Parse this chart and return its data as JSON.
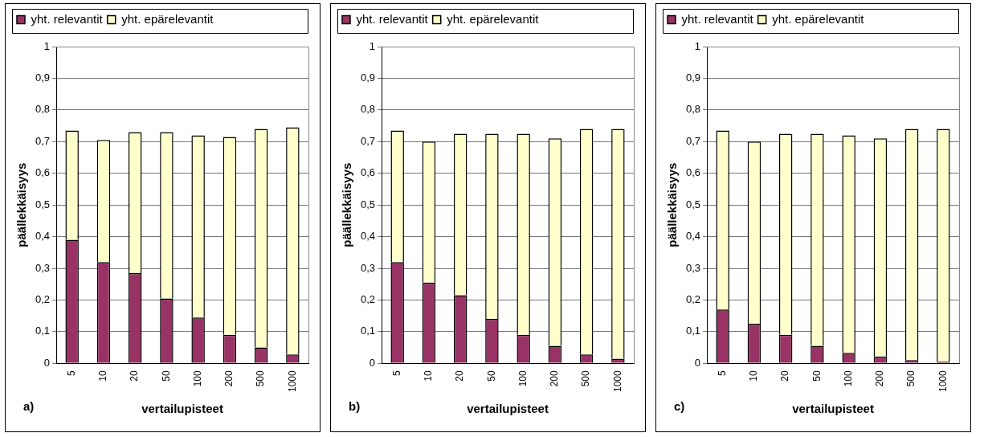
{
  "chart_data": [
    {
      "type": "bar",
      "stacked": true,
      "categories": [
        "5",
        "10",
        "20",
        "50",
        "100",
        "200",
        "500",
        "1000"
      ],
      "ylabel": "päällekkäisyys",
      "xlabel": "vertailupisteet",
      "annotations": [
        "a)"
      ],
      "legend": "top",
      "grid": "y",
      "ylim": [
        0,
        1
      ],
      "yticks": [
        {
          "value": 0,
          "label": "0"
        },
        {
          "value": 0.1,
          "label": "0,1"
        },
        {
          "value": 0.2,
          "label": "0,2"
        },
        {
          "value": 0.3,
          "label": "0,3"
        },
        {
          "value": 0.4,
          "label": "0,4"
        },
        {
          "value": 0.5,
          "label": "0,5"
        },
        {
          "value": 0.6,
          "label": "0,6"
        },
        {
          "value": 0.7,
          "label": "0,7"
        },
        {
          "value": 0.8,
          "label": "0,8"
        },
        {
          "value": 0.9,
          "label": "0,9"
        },
        {
          "value": 1,
          "label": "1"
        }
      ],
      "series": [
        {
          "name": "yht. relevantit",
          "color": "#993366",
          "values": [
            0.39,
            0.32,
            0.285,
            0.205,
            0.145,
            0.09,
            0.05,
            0.028
          ]
        },
        {
          "name": "yht. epärelevantit",
          "color": "#ffffcc",
          "values": [
            0.345,
            0.385,
            0.445,
            0.525,
            0.575,
            0.625,
            0.69,
            0.717
          ]
        }
      ]
    },
    {
      "type": "bar",
      "stacked": true,
      "categories": [
        "5",
        "10",
        "20",
        "50",
        "100",
        "200",
        "500",
        "1000"
      ],
      "ylabel": "päällekkäisyys",
      "xlabel": "vertailupisteet",
      "annotations": [
        "b)"
      ],
      "legend": "top",
      "grid": "y",
      "ylim": [
        0,
        1
      ],
      "yticks": [
        {
          "value": 0,
          "label": "0"
        },
        {
          "value": 0.1,
          "label": "0,1"
        },
        {
          "value": 0.2,
          "label": "0,2"
        },
        {
          "value": 0.3,
          "label": "0,3"
        },
        {
          "value": 0.4,
          "label": "0,4"
        },
        {
          "value": 0.5,
          "label": "0,5"
        },
        {
          "value": 0.6,
          "label": "0,6"
        },
        {
          "value": 0.7,
          "label": "0,7"
        },
        {
          "value": 0.8,
          "label": "0,8"
        },
        {
          "value": 0.9,
          "label": "0,9"
        },
        {
          "value": 1,
          "label": "1"
        }
      ],
      "series": [
        {
          "name": "yht. relevantit",
          "color": "#993366",
          "values": [
            0.32,
            0.255,
            0.215,
            0.14,
            0.09,
            0.055,
            0.028,
            0.015
          ]
        },
        {
          "name": "yht. epärelevantit",
          "color": "#ffffcc",
          "values": [
            0.415,
            0.445,
            0.51,
            0.585,
            0.635,
            0.655,
            0.712,
            0.725
          ]
        }
      ]
    },
    {
      "type": "bar",
      "stacked": true,
      "categories": [
        "5",
        "10",
        "20",
        "50",
        "100",
        "200",
        "500",
        "1000"
      ],
      "ylabel": "päällekkäisyys",
      "xlabel": "vertailupisteet",
      "annotations": [
        "c)"
      ],
      "legend": "top",
      "grid": "y",
      "ylim": [
        0,
        1
      ],
      "yticks": [
        {
          "value": 0,
          "label": "0"
        },
        {
          "value": 0.1,
          "label": "0,1"
        },
        {
          "value": 0.2,
          "label": "0,2"
        },
        {
          "value": 0.3,
          "label": "0,3"
        },
        {
          "value": 0.4,
          "label": "0,4"
        },
        {
          "value": 0.5,
          "label": "0,5"
        },
        {
          "value": 0.6,
          "label": "0,6"
        },
        {
          "value": 0.7,
          "label": "0,7"
        },
        {
          "value": 0.8,
          "label": "0,8"
        },
        {
          "value": 0.9,
          "label": "0,9"
        },
        {
          "value": 1,
          "label": "1"
        }
      ],
      "series": [
        {
          "name": "yht. relevantit",
          "color": "#993366",
          "values": [
            0.17,
            0.125,
            0.09,
            0.055,
            0.033,
            0.022,
            0.01,
            0.005
          ]
        },
        {
          "name": "yht. epärelevantit",
          "color": "#ffffcc",
          "values": [
            0.565,
            0.575,
            0.635,
            0.67,
            0.687,
            0.688,
            0.73,
            0.735
          ]
        }
      ]
    }
  ]
}
